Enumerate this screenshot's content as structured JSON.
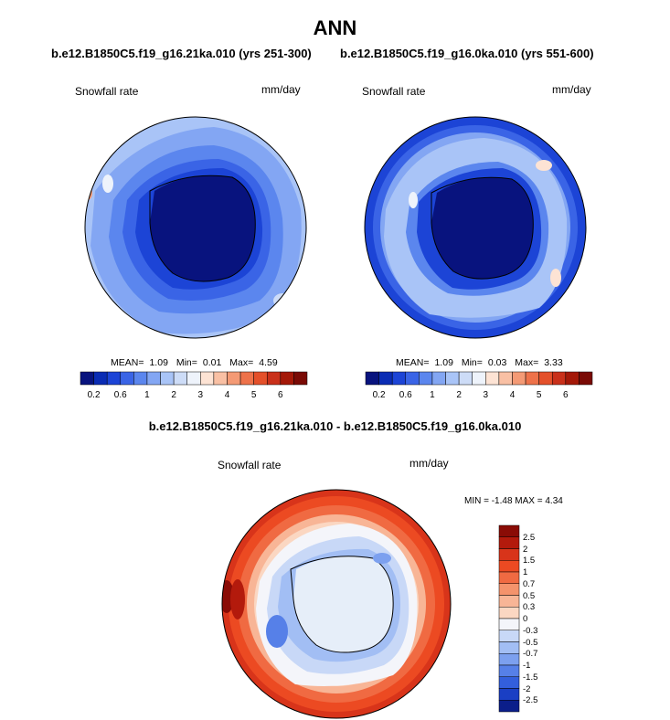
{
  "page": {
    "title": "ANN",
    "left_run": "b.e12.B1850C5.f19_g16.21ka.010 (yrs 251-300)",
    "right_run": "b.e12.B1850C5.f19_g16.0ka.010 (yrs 551-600)",
    "diff_title": "b.e12.B1850C5.f19_g16.21ka.010 - b.e12.B1850C5.f19_g16.0ka.010"
  },
  "panels": {
    "left": {
      "variable": "Snowfall rate",
      "units": "mm/day",
      "mean_label": "MEAN=",
      "mean": "1.09",
      "min_label": "Min=",
      "min": "0.01",
      "max_label": "Max=",
      "max": "4.59"
    },
    "right": {
      "variable": "Snowfall rate",
      "units": "mm/day",
      "mean_label": "MEAN=",
      "mean": "1.09",
      "min_label": "Min=",
      "min": "0.03",
      "max_label": "Max=",
      "max": "3.33"
    },
    "diff": {
      "variable": "Snowfall rate",
      "units": "mm/day",
      "minmax_text": "MIN =  -1.48 MAX =   4.34"
    }
  },
  "colorbar_h": {
    "ticks": [
      "0.2",
      "0.6",
      "1",
      "2",
      "3",
      "4",
      "5",
      "6"
    ],
    "colors": [
      "#08137e",
      "#0a2cb4",
      "#1c44d6",
      "#3a64e6",
      "#5b86ee",
      "#83a6f3",
      "#a9c4f7",
      "#cddcf7",
      "#eef3fb",
      "#fde3d4",
      "#f9c0a4",
      "#f49a75",
      "#ee724a",
      "#e4502a",
      "#c9301a",
      "#a41808",
      "#7a0a05"
    ]
  },
  "colorbar_v": {
    "labels": [
      "2.5",
      "2",
      "1.5",
      "1",
      "0.7",
      "0.5",
      "0.3",
      "0",
      "-0.3",
      "-0.5",
      "-0.7",
      "-1",
      "-1.5",
      "-2",
      "-2.5"
    ],
    "colors": [
      "#8a0c06",
      "#b31a0c",
      "#d8341a",
      "#ec4a22",
      "#f06a42",
      "#f4936c",
      "#f8b596",
      "#fbd7c2",
      "#f4f5fa",
      "#c8d8f7",
      "#a2bef4",
      "#7ca0ef",
      "#5680e8",
      "#335fdc",
      "#1a3fc4",
      "#0b1e8a"
    ]
  }
}
